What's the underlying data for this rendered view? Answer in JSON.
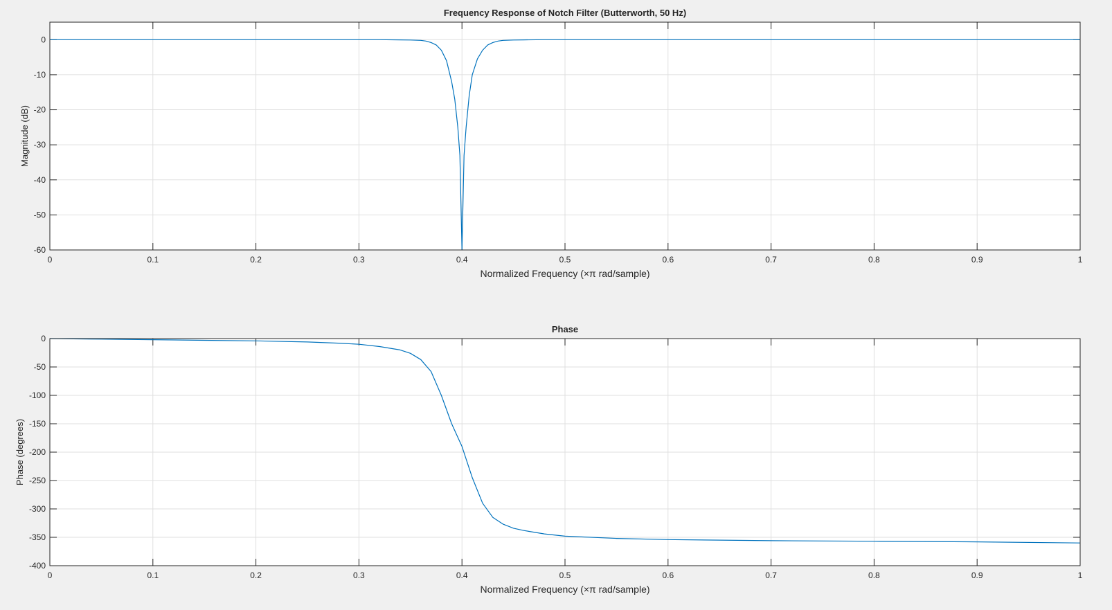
{
  "figure": {
    "background": "#f0f0f0",
    "axes_background": "#ffffff",
    "axis_color": "#262626",
    "grid_color": "#dfdfdf",
    "line_color": "#0072bd"
  },
  "chart_data": [
    {
      "type": "line",
      "title": "Frequency Response of Notch Filter (Butterworth, 50 Hz)",
      "xlabel": "Normalized Frequency  (×π rad/sample)",
      "ylabel": "Magnitude (dB)",
      "xlim": [
        0,
        1
      ],
      "ylim": [
        -60,
        5
      ],
      "grid": true,
      "xticks": [
        0,
        0.1,
        0.2,
        0.3,
        0.4,
        0.5,
        0.6,
        0.7,
        0.8,
        0.9,
        1
      ],
      "xtick_labels": [
        "0",
        "0.1",
        "0.2",
        "0.3",
        "0.4",
        "0.5",
        "0.6",
        "0.7",
        "0.8",
        "0.9",
        "1"
      ],
      "yticks": [
        0,
        -10,
        -20,
        -30,
        -40,
        -50,
        -60
      ],
      "ytick_labels": [
        "0",
        "-10",
        "-20",
        "-30",
        "-40",
        "-50",
        "-60"
      ],
      "series": [
        {
          "x": [
            0,
            0.05,
            0.1,
            0.15,
            0.2,
            0.25,
            0.3,
            0.32,
            0.34,
            0.35,
            0.36,
            0.365,
            0.37,
            0.375,
            0.38,
            0.385,
            0.39,
            0.393,
            0.396,
            0.398,
            0.4,
            0.402,
            0.404,
            0.407,
            0.41,
            0.415,
            0.42,
            0.425,
            0.43,
            0.435,
            0.44,
            0.45,
            0.46,
            0.48,
            0.5,
            0.6,
            0.7,
            0.8,
            0.9,
            1
          ],
          "values": [
            0,
            0,
            0,
            0,
            0,
            0,
            0,
            0,
            -0.05,
            -0.1,
            -0.2,
            -0.4,
            -0.8,
            -1.5,
            -3,
            -6,
            -12,
            -17,
            -25,
            -33,
            -60,
            -33,
            -25,
            -16,
            -10,
            -5.5,
            -3,
            -1.5,
            -0.8,
            -0.4,
            -0.2,
            -0.1,
            -0.05,
            0,
            0,
            0,
            0,
            0,
            0,
            0
          ]
        }
      ]
    },
    {
      "type": "line",
      "title": "Phase",
      "xlabel": "Normalized Frequency  (×π rad/sample)",
      "ylabel": "Phase (degrees)",
      "xlim": [
        0,
        1
      ],
      "ylim": [
        -400,
        0
      ],
      "grid": true,
      "xticks": [
        0,
        0.1,
        0.2,
        0.3,
        0.4,
        0.5,
        0.6,
        0.7,
        0.8,
        0.9,
        1
      ],
      "xtick_labels": [
        "0",
        "0.1",
        "0.2",
        "0.3",
        "0.4",
        "0.5",
        "0.6",
        "0.7",
        "0.8",
        "0.9",
        "1"
      ],
      "yticks": [
        0,
        -50,
        -100,
        -150,
        -200,
        -250,
        -300,
        -350,
        -400
      ],
      "ytick_labels": [
        "0",
        "-50",
        "-100",
        "-150",
        "-200",
        "-250",
        "-300",
        "-350",
        "-400"
      ],
      "series": [
        {
          "x": [
            0,
            0.05,
            0.1,
            0.15,
            0.2,
            0.25,
            0.28,
            0.3,
            0.32,
            0.34,
            0.35,
            0.36,
            0.37,
            0.38,
            0.39,
            0.4,
            0.41,
            0.42,
            0.43,
            0.44,
            0.45,
            0.46,
            0.48,
            0.5,
            0.55,
            0.6,
            0.7,
            0.8,
            0.9,
            1
          ],
          "values": [
            0,
            -1,
            -2,
            -3,
            -4,
            -6,
            -8,
            -10,
            -14,
            -20,
            -26,
            -37,
            -58,
            -100,
            -150,
            -190,
            -245,
            -290,
            -315,
            -327,
            -334,
            -338,
            -344,
            -348,
            -352,
            -354,
            -356,
            -357,
            -358,
            -360
          ]
        }
      ]
    }
  ]
}
